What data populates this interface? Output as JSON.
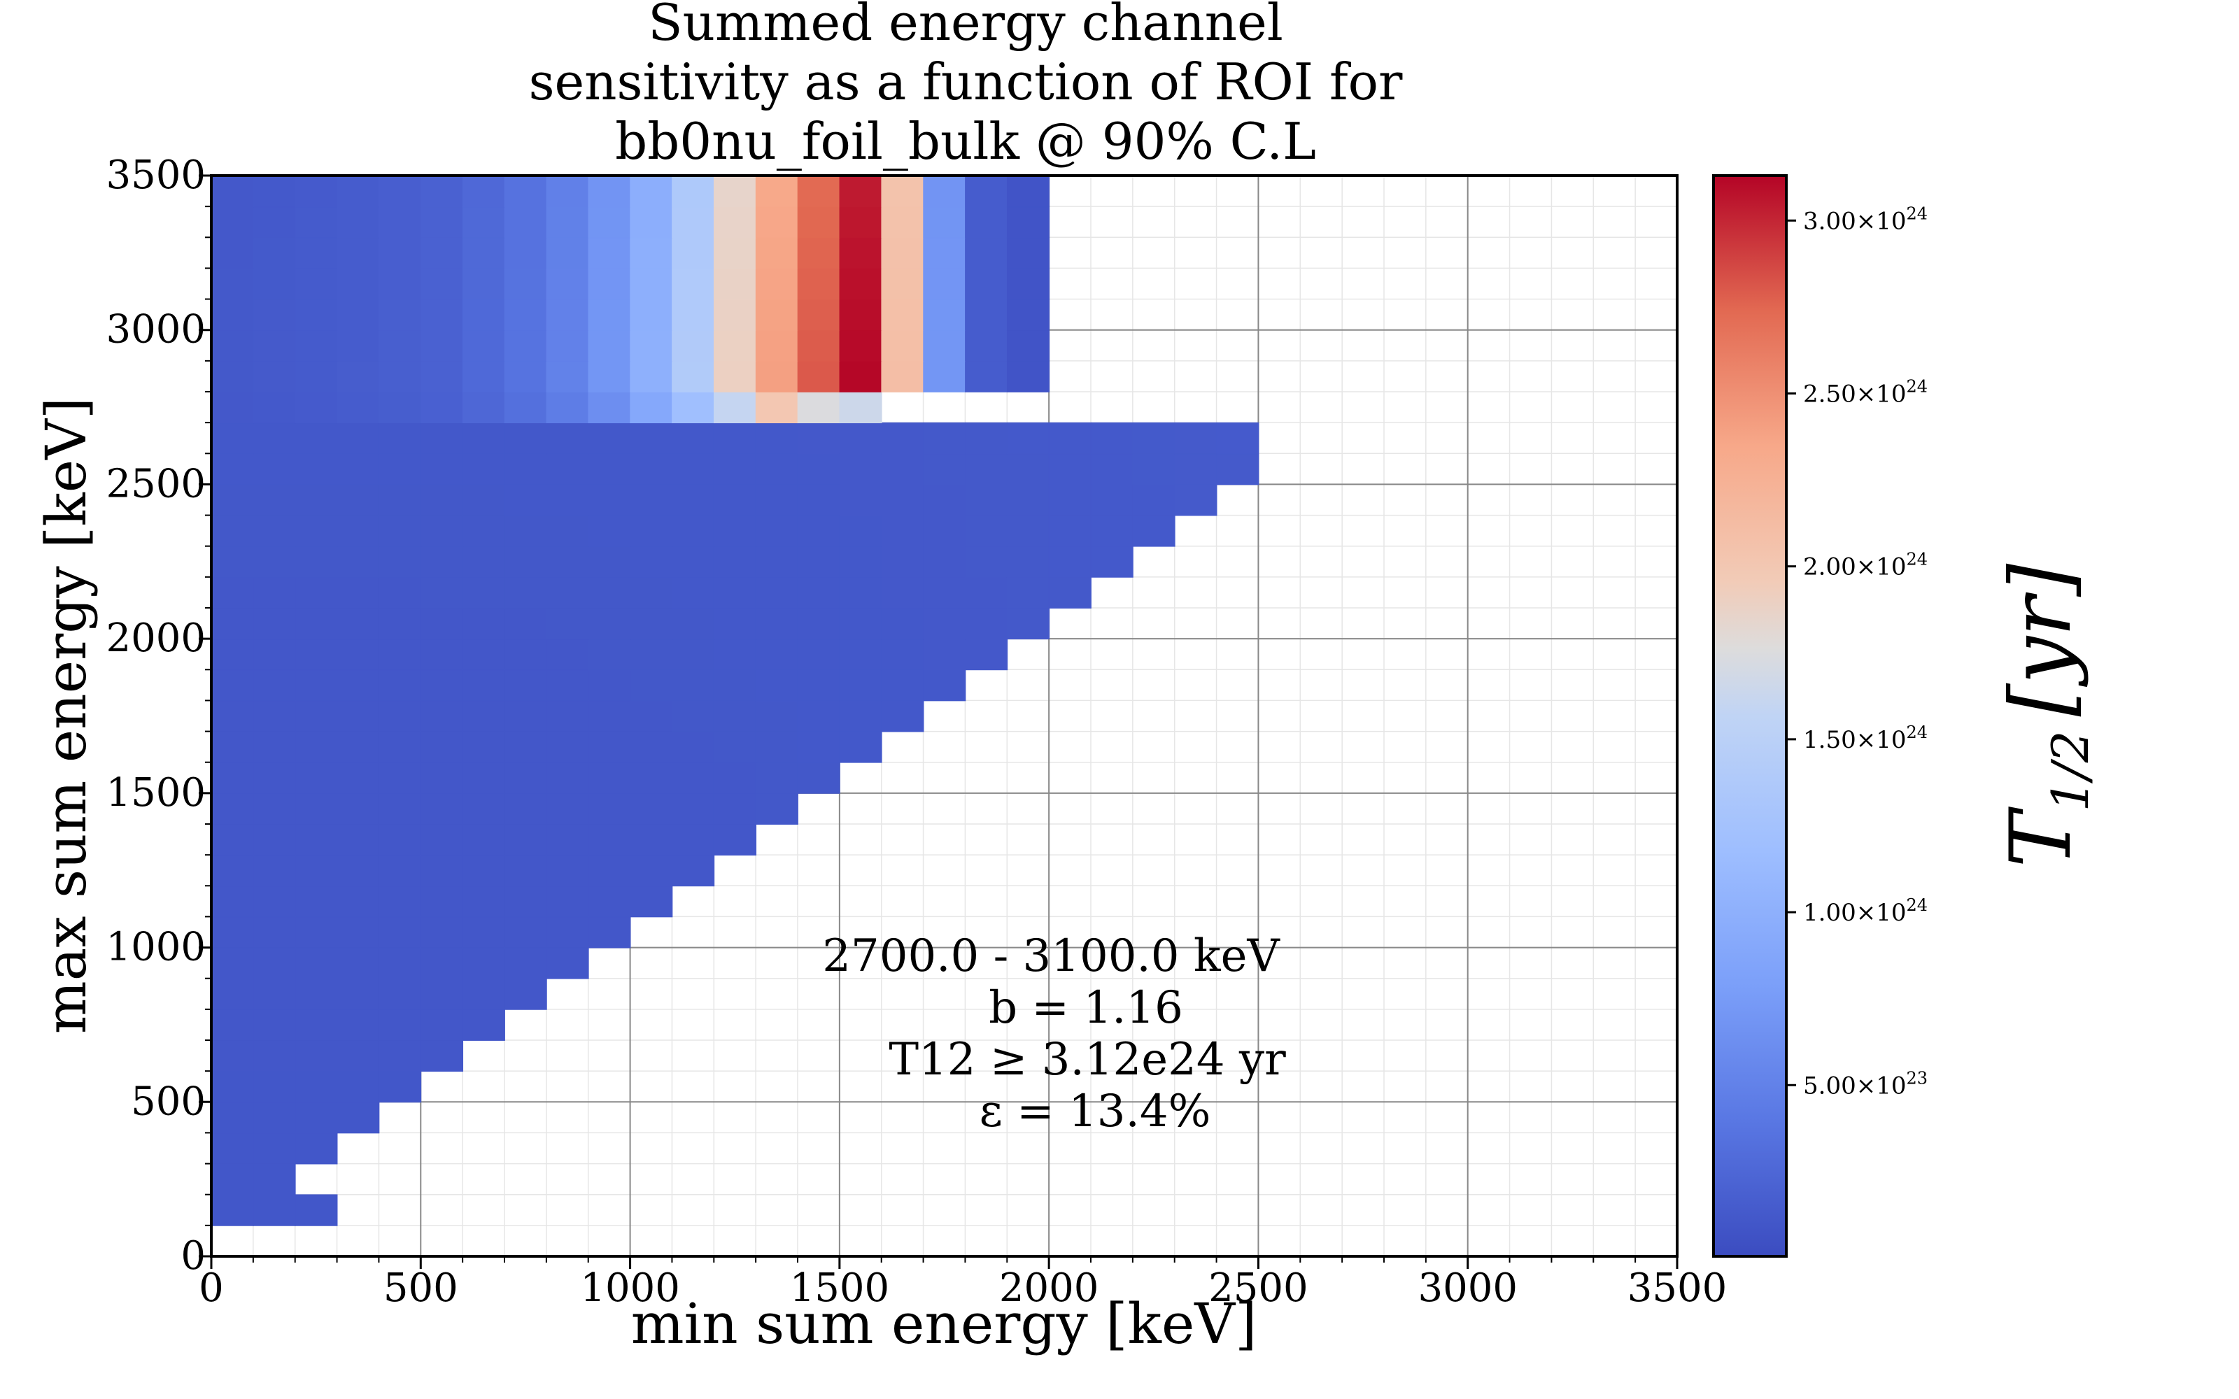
{
  "chart_data": {
    "type": "heatmap",
    "title_lines": [
      "Summed energy channel",
      "sensitivity as a function of ROI for",
      "bb0nu_foil_bulk @ 90% C.L"
    ],
    "xlabel": "min sum energy [keV]",
    "ylabel": "max sum energy [keV]",
    "xlim": [
      0,
      3500
    ],
    "ylim": [
      0,
      3500
    ],
    "bin_width": 100,
    "x_ticks": [
      0,
      500,
      1000,
      1500,
      2000,
      2500,
      3000,
      3500
    ],
    "y_ticks": [
      0,
      500,
      1000,
      1500,
      2000,
      2500,
      3000,
      3500
    ],
    "x_tick_labels": [
      "0",
      "500",
      "1000",
      "1500",
      "2000",
      "2500",
      "3000",
      "3500"
    ],
    "y_tick_labels": [
      "0",
      "500",
      "1000",
      "1500",
      "2000",
      "2500",
      "3000",
      "3500"
    ],
    "grid": true,
    "colormap": "coolwarm",
    "colorbar": {
      "label_main": "T",
      "label_sub": "1/2",
      "label_unit": "[yr]",
      "range": [
        5e+21,
        3.13e+24
      ],
      "ticks": [
        5e+23,
        1e+24,
        1.5e+24,
        2e+24,
        2.5e+24,
        3e+24
      ],
      "tick_labels": [
        {
          "mant": "5.00×10",
          "exp": "23"
        },
        {
          "mant": "1.00×10",
          "exp": "24"
        },
        {
          "mant": "1.50×10",
          "exp": "24"
        },
        {
          "mant": "2.00×10",
          "exp": "24"
        },
        {
          "mant": "2.50×10",
          "exp": "24"
        },
        {
          "mant": "3.00×10",
          "exp": "24"
        }
      ]
    },
    "row_2800_values": [
      1.2,
      1.3,
      1.4,
      1.55,
      1.75,
      2.0,
      2.7,
      3.6,
      5.0,
      7.0,
      10.0,
      14.0,
      19.0,
      24.0,
      28.0,
      31.2,
      21.0,
      7.0,
      1.5,
      0.8
    ],
    "row_2700_values": [
      1.18,
      1.26,
      1.35,
      1.48,
      1.65,
      1.9,
      2.5,
      3.3,
      4.5,
      6.2,
      9.0,
      12.0,
      16.0,
      20.0,
      17.5,
      16.5
    ],
    "annotation": {
      "lines": [
        "2700.0 - 3100.0 keV",
        "b  = 1.16",
        "T12 ≥  3.12e24 yr",
        "ε = 13.4%"
      ]
    }
  }
}
